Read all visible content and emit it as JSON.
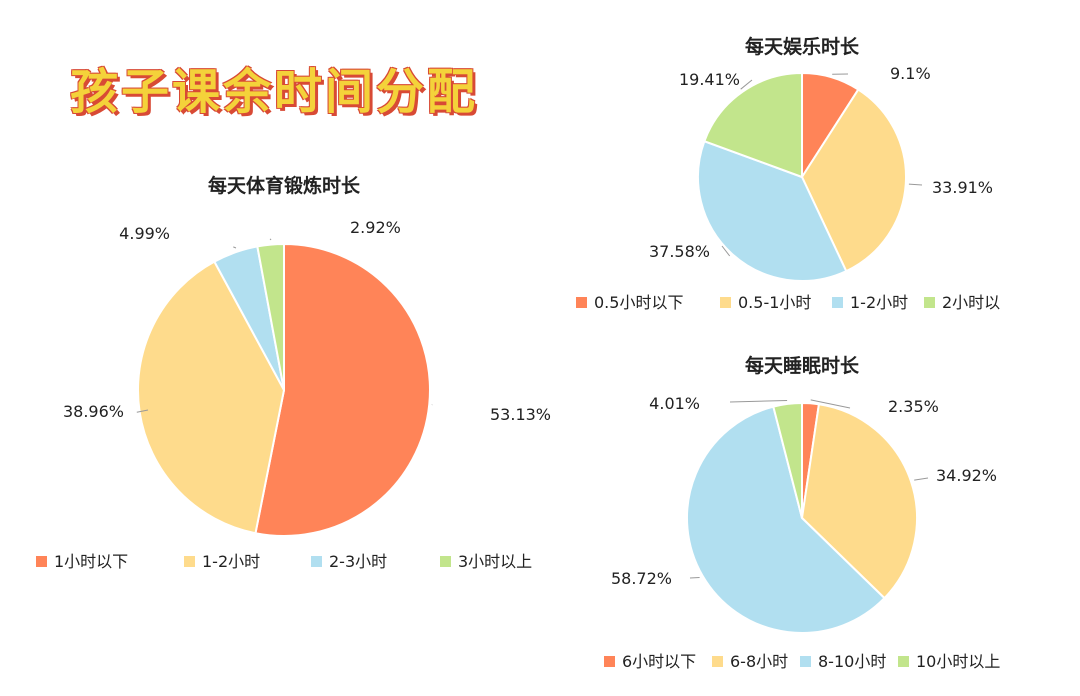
{
  "page": {
    "title": "孩子课余时间分配"
  },
  "chart_data": [
    {
      "type": "pie",
      "title": "每天体育锻炼时长",
      "categories": [
        "1小时以下",
        "1-2小时",
        "2-3小时",
        "3小时以上"
      ],
      "values": [
        53.13,
        38.96,
        4.99,
        2.92
      ],
      "labels": [
        "53.13%",
        "38.96%",
        "4.99%",
        "2.92%"
      ],
      "colors": [
        "#ff8458",
        "#fedb8c",
        "#b1dff0",
        "#c2e58c"
      ],
      "legend": "bottom"
    },
    {
      "type": "pie",
      "title": "每天娱乐时长",
      "categories": [
        "0.5小时以下",
        "0.5-1小时",
        "1-2小时",
        "2小时以"
      ],
      "values": [
        9.1,
        33.91,
        37.58,
        19.41
      ],
      "labels": [
        "9.1%",
        "33.91%",
        "37.58%",
        "19.41%"
      ],
      "colors": [
        "#ff8458",
        "#fedb8c",
        "#b1dff0",
        "#c2e58c"
      ],
      "legend": "bottom"
    },
    {
      "type": "pie",
      "title": "每天睡眠时长",
      "categories": [
        "6小时以下",
        "6-8小时",
        "8-10小时",
        "10小时以上"
      ],
      "values": [
        2.35,
        34.92,
        58.72,
        4.01
      ],
      "labels": [
        "2.35%",
        "34.92%",
        "58.72%",
        "4.01%"
      ],
      "colors": [
        "#ff8458",
        "#fedb8c",
        "#b1dff0",
        "#c2e58c"
      ],
      "legend": "bottom"
    }
  ]
}
